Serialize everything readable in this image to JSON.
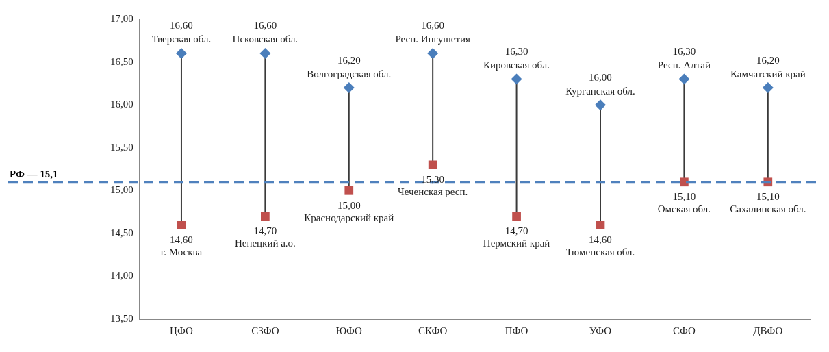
{
  "chart_data": {
    "type": "scatter",
    "categories": [
      "ЦФО",
      "СЗФО",
      "ЮФО",
      "СКФО",
      "ПФО",
      "УФО",
      "СФО",
      "ДВФО"
    ],
    "series": [
      {
        "marker": "diamond",
        "color": "#4a7ebb",
        "values": [
          16.6,
          16.6,
          16.2,
          16.6,
          16.3,
          16.0,
          16.3,
          16.2
        ],
        "value_labels": [
          "16,60",
          "16,60",
          "16,20",
          "16,60",
          "16,30",
          "16,00",
          "16,30",
          "16,20"
        ]
      },
      {
        "marker": "square",
        "color": "#c0504d",
        "values": [
          14.6,
          14.7,
          15.0,
          15.3,
          14.7,
          14.6,
          15.1,
          15.1
        ],
        "value_labels": [
          "14,60",
          "14,70",
          "15,00",
          "15,30",
          "14,70",
          "14,60",
          "15,10",
          "15,10"
        ]
      }
    ],
    "ylim": [
      13.5,
      17
    ],
    "yticks": [
      {
        "value": 13.5,
        "label": "13,50"
      },
      {
        "value": 14,
        "label": "14,00"
      },
      {
        "value": 14.5,
        "label": "14,50"
      },
      {
        "value": 15,
        "label": "15,00"
      },
      {
        "value": 15.5,
        "label": "15,50"
      },
      {
        "value": 16,
        "label": "16,00"
      },
      {
        "value": 16.5,
        "label": "16,50"
      },
      {
        "value": 17,
        "label": "17,00"
      }
    ],
    "grid": false,
    "legend": false,
    "ref_lines": [
      {
        "axis": "y",
        "value": 15.1,
        "label": "РФ — 15,1",
        "color": "#4f81bd",
        "line_style": "dashed"
      }
    ],
    "annotations": [
      {
        "text": "Тверская обл.",
        "x": "ЦФО",
        "y": 16.6
      },
      {
        "text": "Псковская обл.",
        "x": "СЗФО",
        "y": 16.6
      },
      {
        "text": "Волгоградская обл.",
        "x": "ЮФО",
        "y": 16.2
      },
      {
        "text": "Респ. Ингушетия",
        "x": "СКФО",
        "y": 16.6
      },
      {
        "text": "Кировская обл.",
        "x": "ПФО",
        "y": 16.3
      },
      {
        "text": "Курганская обл.",
        "x": "УФО",
        "y": 16.0
      },
      {
        "text": "Респ. Алтай",
        "x": "СФО",
        "y": 16.3
      },
      {
        "text": "Камчатский край",
        "x": "ДВФО",
        "y": 16.2
      },
      {
        "text": "г. Москва",
        "x": "ЦФО",
        "y": 14.6
      },
      {
        "text": "Ненецкий а.о.",
        "x": "СЗФО",
        "y": 14.7
      },
      {
        "text": "Краснодарский край",
        "x": "ЮФО",
        "y": 15.0
      },
      {
        "text": "Чеченская респ.",
        "x": "СКФО",
        "y": 15.3
      },
      {
        "text": "Пермский край",
        "x": "ПФО",
        "y": 14.7
      },
      {
        "text": "Тюменская обл.",
        "x": "УФО",
        "y": 14.6
      },
      {
        "text": "Омская обл.",
        "x": "СФО",
        "y": 15.1
      },
      {
        "text": "Сахалинская обл.",
        "x": "ДВФО",
        "y": 15.1
      }
    ]
  }
}
